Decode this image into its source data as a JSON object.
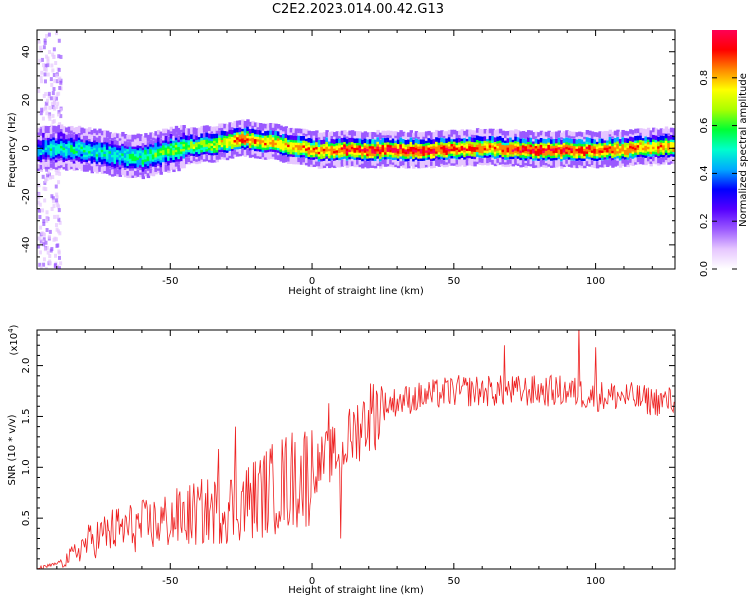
{
  "title": "C2E2.2023.014.00.42.G13",
  "chart_data": [
    {
      "type": "heatmap",
      "xlabel": "Height of straight line (km)",
      "ylabel": "Frequency (Hz)",
      "xlim": [
        -97,
        128
      ],
      "ylim": [
        -50,
        49
      ],
      "xticks": [
        -50,
        0,
        50,
        100
      ],
      "yticks": [
        -40,
        -20,
        0,
        20,
        40
      ],
      "colorbar": {
        "label": "Normalized spectral amplitude",
        "range": [
          0,
          1
        ],
        "ticks": [
          "0.0",
          "0.2",
          "0.4",
          "0.6",
          "0.8"
        ],
        "colormap": [
          "#ffffff",
          "#e6c6ff",
          "#9b59ff",
          "#5500ff",
          "#0000ff",
          "#00aaff",
          "#00ffcc",
          "#00ff33",
          "#aaff00",
          "#ffff00",
          "#ff8800",
          "#ff0000",
          "#ff0055"
        ]
      },
      "dominant_frequency_track": {
        "x": [
          -97,
          -90,
          -80,
          -70,
          -60,
          -50,
          -40,
          -30,
          -25,
          -20,
          -10,
          0,
          10,
          20,
          40,
          60,
          80,
          100,
          120,
          128
        ],
        "frequency": [
          0,
          1,
          0,
          -2,
          -3,
          0,
          2,
          3,
          5,
          4,
          2,
          0,
          0,
          0,
          0,
          1,
          0,
          0,
          1,
          2
        ],
        "peak_amplitude": [
          0.4,
          0.5,
          0.5,
          0.5,
          0.55,
          0.6,
          0.65,
          0.75,
          0.9,
          0.8,
          0.8,
          0.85,
          0.9,
          0.95,
          0.95,
          0.85,
          0.95,
          0.9,
          0.85,
          0.8
        ]
      }
    },
    {
      "type": "line",
      "xlabel": "Height of straight line (km)",
      "ylabel": "SNR (10 * v/v)",
      "yscale_label": "(x10",
      "yscale_exp": "4",
      "xlim": [
        -97,
        128
      ],
      "ylim": [
        0,
        23500
      ],
      "xticks": [
        -50,
        0,
        50,
        100
      ],
      "yticks": [
        "0.5",
        "1.0",
        "1.5",
        "2.0"
      ],
      "ytick_values": [
        5000,
        10000,
        15000,
        20000
      ],
      "series": [
        {
          "color": "#ee2222",
          "trend_x": [
            -97,
            -90,
            -85,
            -80,
            -75,
            -70,
            -60,
            -50,
            -40,
            -30,
            -20,
            -10,
            0,
            5,
            10,
            15,
            20,
            25,
            30,
            40,
            50,
            60,
            70,
            80,
            90,
            100,
            110,
            120,
            128
          ],
          "trend_y": [
            0,
            500,
            1200,
            2500,
            3200,
            3800,
            4200,
            4800,
            5500,
            6000,
            7000,
            8500,
            9500,
            11000,
            11500,
            13500,
            15000,
            16000,
            16500,
            17000,
            17500,
            17500,
            17500,
            17500,
            17500,
            17000,
            17000,
            16500,
            16500
          ],
          "spikes": [
            {
              "x": -27,
              "y": 14000
            },
            {
              "x": -33,
              "y": 11800
            },
            {
              "x": 6,
              "y": 16300
            },
            {
              "x": 10,
              "y": 3000
            },
            {
              "x": 68,
              "y": 22000
            },
            {
              "x": 94,
              "y": 24000
            },
            {
              "x": 100,
              "y": 21800
            }
          ]
        }
      ]
    }
  ]
}
